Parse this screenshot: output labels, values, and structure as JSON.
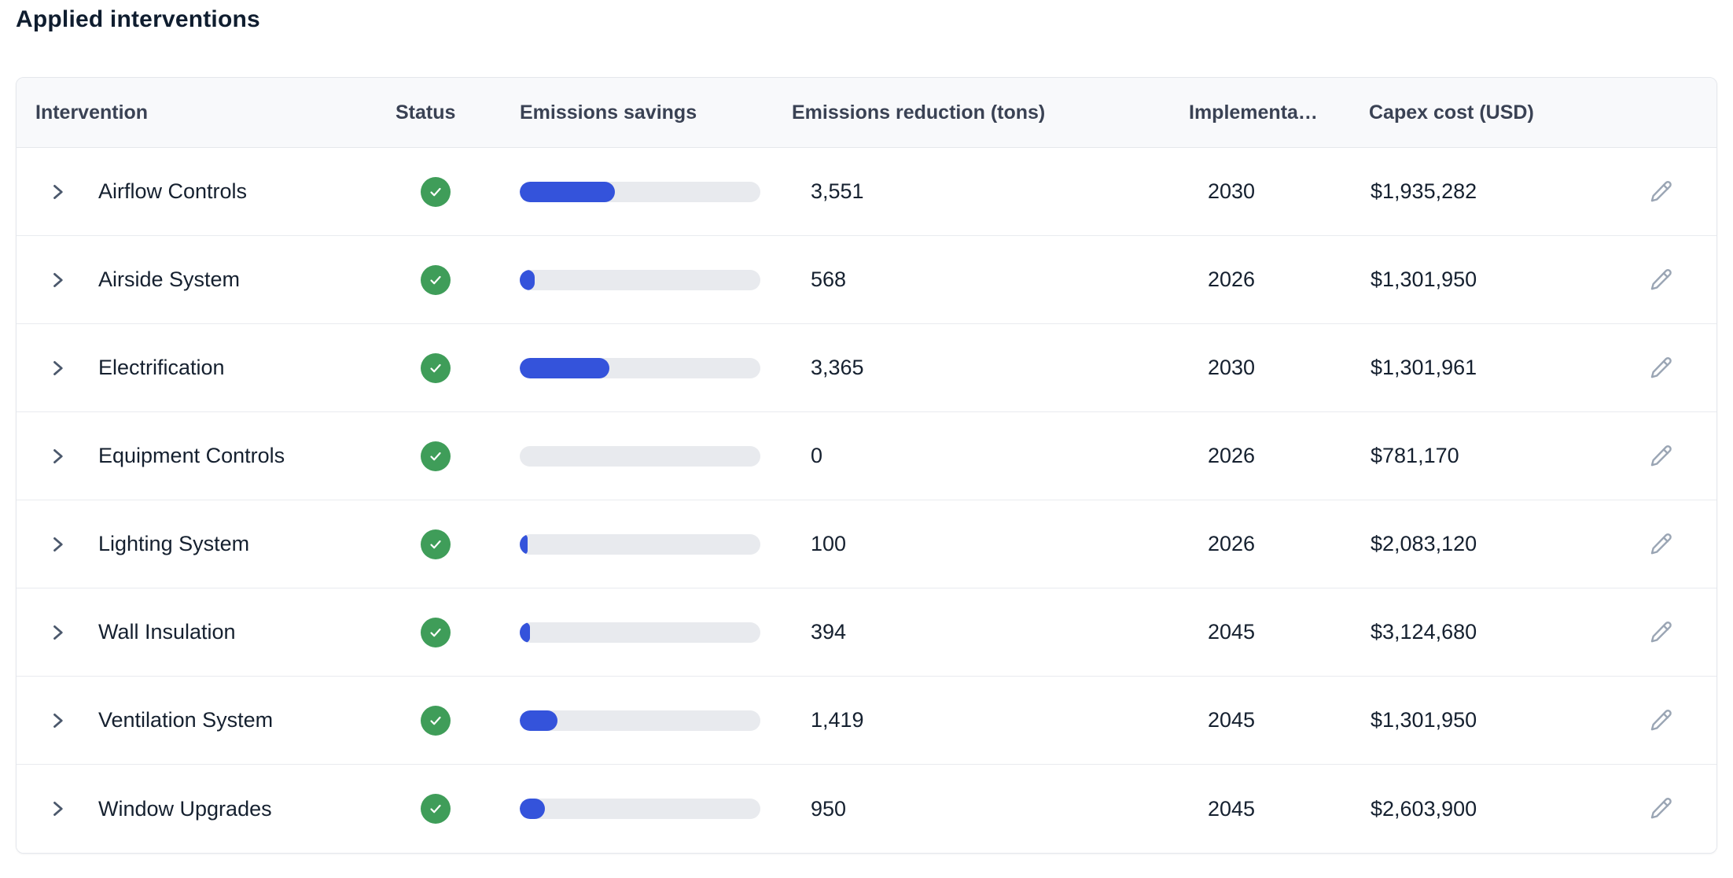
{
  "page": {
    "title": "Applied interventions"
  },
  "colors": {
    "accent_blue": "#3453db",
    "status_green": "#3f9d59",
    "track_gray": "#e8eaee",
    "header_bg": "#f8f9fb",
    "text_dark": "#15202f",
    "icon_gray": "#9aa5b4"
  },
  "table": {
    "columns": [
      {
        "key": "intervention",
        "label": "Intervention"
      },
      {
        "key": "status",
        "label": "Status"
      },
      {
        "key": "savings",
        "label": "Emissions savings"
      },
      {
        "key": "reduction",
        "label": "Emissions reduction (tons)"
      },
      {
        "key": "year",
        "label": "Implementa…"
      },
      {
        "key": "capex",
        "label": "Capex cost (USD)"
      },
      {
        "key": "edit",
        "label": ""
      }
    ],
    "rows": [
      {
        "name": "Airflow Controls",
        "status": "complete",
        "savings_percent": 39.5,
        "reduction": "3,551",
        "year": "2030",
        "capex": "$1,935,282"
      },
      {
        "name": "Airside System",
        "status": "complete",
        "savings_percent": 6.3,
        "reduction": "568",
        "year": "2026",
        "capex": "$1,301,950"
      },
      {
        "name": "Electrification",
        "status": "complete",
        "savings_percent": 37.4,
        "reduction": "3,365",
        "year": "2030",
        "capex": "$1,301,961"
      },
      {
        "name": "Equipment Controls",
        "status": "complete",
        "savings_percent": 0,
        "reduction": "0",
        "year": "2026",
        "capex": "$781,170"
      },
      {
        "name": "Lighting System",
        "status": "complete",
        "savings_percent": 1.1,
        "reduction": "100",
        "year": "2026",
        "capex": "$2,083,120"
      },
      {
        "name": "Wall Insulation",
        "status": "complete",
        "savings_percent": 4.4,
        "reduction": "394",
        "year": "2045",
        "capex": "$3,124,680"
      },
      {
        "name": "Ventilation System",
        "status": "complete",
        "savings_percent": 15.8,
        "reduction": "1,419",
        "year": "2045",
        "capex": "$1,301,950"
      },
      {
        "name": "Window Upgrades",
        "status": "complete",
        "savings_percent": 10.6,
        "reduction": "950",
        "year": "2045",
        "capex": "$2,603,900"
      }
    ]
  }
}
